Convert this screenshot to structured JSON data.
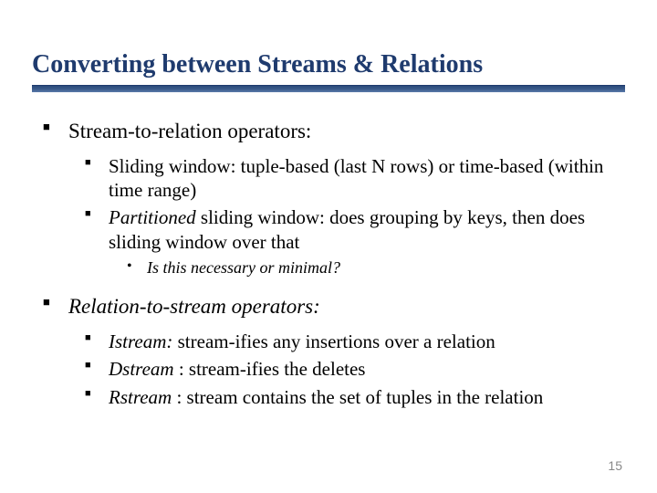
{
  "title": "Converting between Streams & Relations",
  "sections": {
    "s1": {
      "heading": "Stream-to-relation operators:",
      "items": {
        "i1": "Sliding window:  tuple-based (last N rows) or time-based (within time range)",
        "i2_prefix": "Partitioned",
        "i2_rest": "  sliding window:  does grouping by keys, then does sliding window over that",
        "sub": "Is this necessary or minimal?"
      }
    },
    "s2": {
      "heading": "Relation-to-stream operators:",
      "items": {
        "i1_prefix": "Istream:",
        "i1_rest": "  stream-ifies any insertions over a relation",
        "i2_prefix": "Dstream",
        "i2_rest": " : stream-ifies the deletes",
        "i3_prefix": "Rstream",
        "i3_rest": " : stream contains the set of tuples in the relation"
      }
    }
  },
  "page_number": "15",
  "colors": {
    "title": "#1f3b6e",
    "underline_top": "#2a4a7a",
    "underline_bottom": "#5a7aaa",
    "text": "#000000",
    "page_num": "#888888",
    "background": "#ffffff"
  },
  "fonts": {
    "title_size": 28,
    "lvl1_size": 23,
    "lvl2_size": 21,
    "lvl3_size": 18,
    "pagenum_size": 14
  }
}
